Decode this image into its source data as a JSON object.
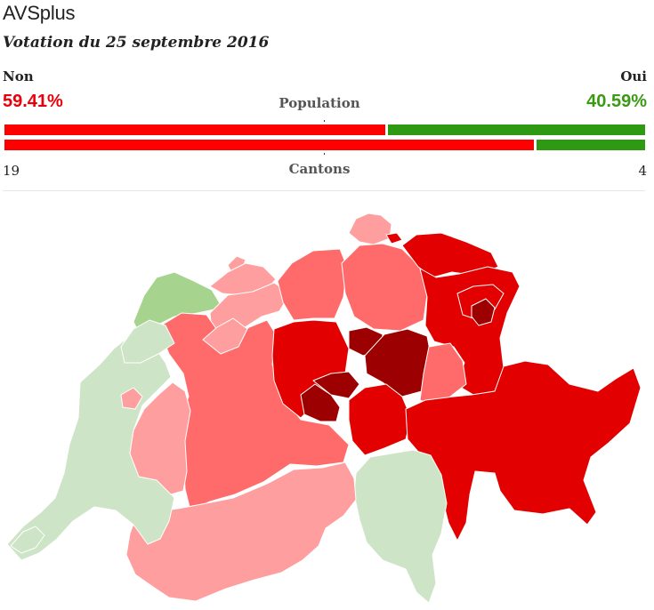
{
  "header": {
    "title": "AVSplus",
    "subtitle": "Votation du 25 septembre 2016"
  },
  "results": {
    "non_label": "Non",
    "oui_label": "Oui",
    "non_percent": "59.41%",
    "oui_percent": "40.59%",
    "population_label": "Population",
    "cantons_label": "Cantons",
    "cantons_non": "19",
    "cantons_oui": "4",
    "population_non_fraction": 0.5941,
    "cantons_non_fraction": 0.8261
  },
  "colors": {
    "non": "#ff0000",
    "oui": "#2e9a14",
    "non_text": "#e8000b",
    "oui_text": "#3a9a12",
    "oui_strong": "#a6d38e",
    "oui_light": "#cde4c6",
    "non_light": "#ff9e9e",
    "non_medium": "#ff6b6b",
    "non_strong": "#e30000",
    "non_darkest": "#9c0000"
  }
}
